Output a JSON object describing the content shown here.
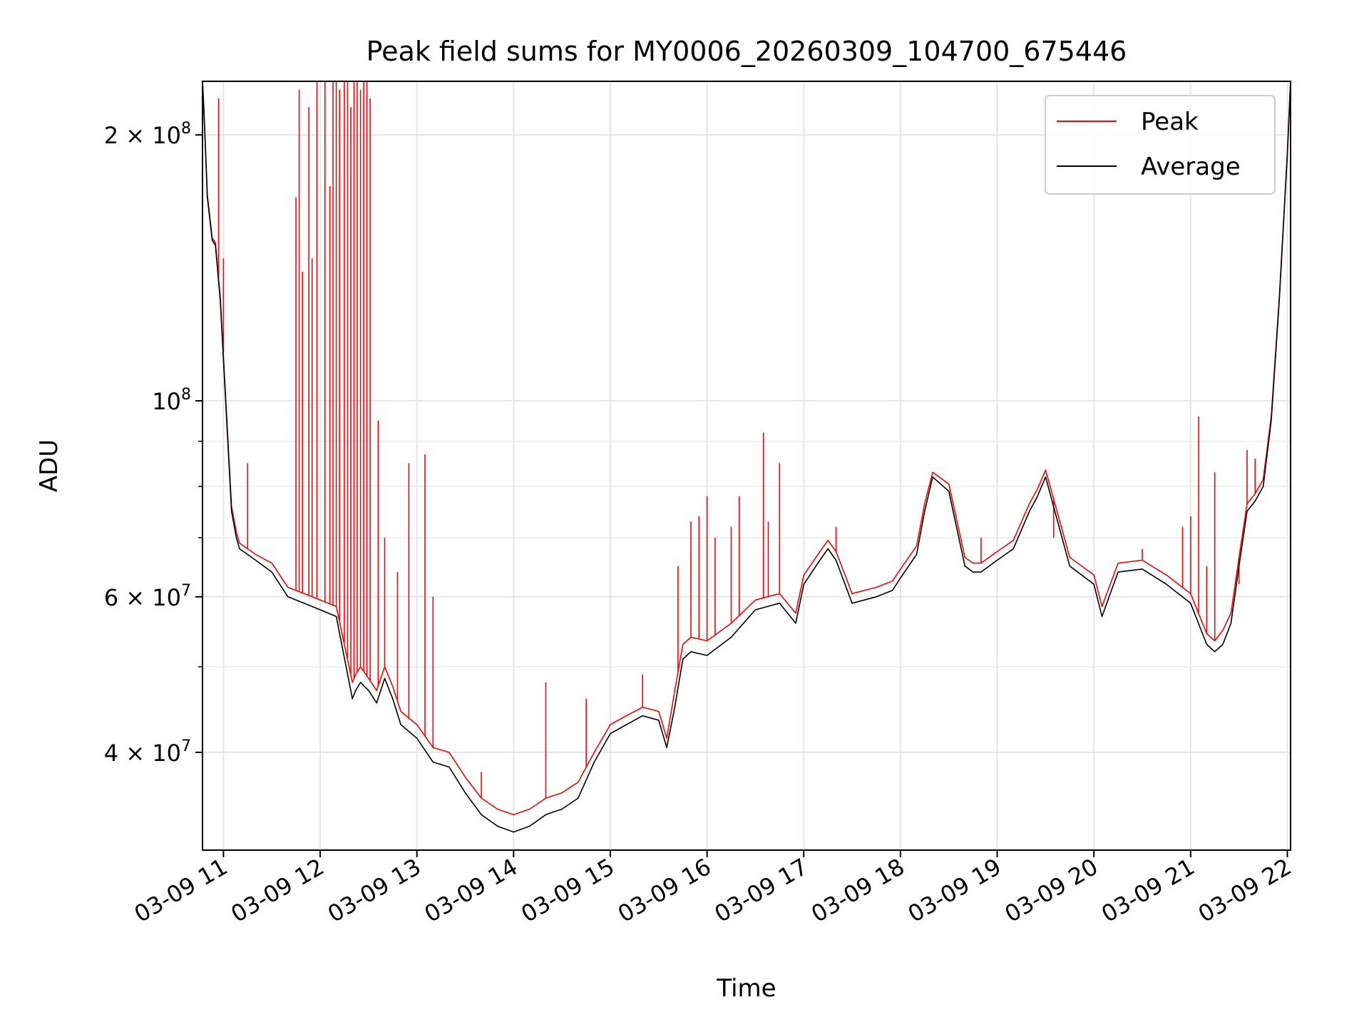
{
  "chart_data": {
    "type": "line",
    "title": "Peak field sums for MY0006_20260309_104700_675446",
    "xlabel": "Time",
    "ylabel": "ADU",
    "y_scale": "log",
    "ylim": [
      31000000,
      230000000
    ],
    "xlim": [
      "03-09 10:47",
      "03-09 22:02"
    ],
    "grid": true,
    "legend_position": "top-right",
    "x_tick_labels": [
      "03-09 11",
      "03-09 12",
      "03-09 13",
      "03-09 14",
      "03-09 15",
      "03-09 16",
      "03-09 17",
      "03-09 18",
      "03-09 19",
      "03-09 20",
      "03-09 21",
      "03-09 22"
    ],
    "y_tick_labels": [
      {
        "value": 40000000,
        "base": "4 × 10",
        "exp": "7"
      },
      {
        "value": 60000000,
        "base": "6 × 10",
        "exp": "7"
      },
      {
        "value": 100000000,
        "base": "10",
        "exp": "8"
      },
      {
        "value": 200000000,
        "base": "2 × 10",
        "exp": "8"
      }
    ],
    "y_minor_ticks": [
      50000000,
      70000000,
      80000000,
      90000000
    ],
    "series": [
      {
        "name": "Average",
        "color": "#000000",
        "x": [
          "03-09 10:47",
          "03-09 10:48",
          "03-09 10:50",
          "03-09 10:53",
          "03-09 10:55",
          "03-09 10:58",
          "03-09 11:02",
          "03-09 11:05",
          "03-09 11:08",
          "03-09 11:10",
          "03-09 11:15",
          "03-09 11:20",
          "03-09 11:30",
          "03-09 11:40",
          "03-09 11:50",
          "03-09 12:00",
          "03-09 12:10",
          "03-09 12:20",
          "03-09 12:22",
          "03-09 12:25",
          "03-09 12:30",
          "03-09 12:35",
          "03-09 12:40",
          "03-09 12:45",
          "03-09 12:50",
          "03-09 13:00",
          "03-09 13:10",
          "03-09 13:20",
          "03-09 13:30",
          "03-09 13:40",
          "03-09 13:50",
          "03-09 14:00",
          "03-09 14:10",
          "03-09 14:20",
          "03-09 14:30",
          "03-09 14:40",
          "03-09 14:50",
          "03-09 15:00",
          "03-09 15:10",
          "03-09 15:20",
          "03-09 15:30",
          "03-09 15:35",
          "03-09 15:40",
          "03-09 15:45",
          "03-09 15:50",
          "03-09 16:00",
          "03-09 16:15",
          "03-09 16:30",
          "03-09 16:45",
          "03-09 16:55",
          "03-09 17:00",
          "03-09 17:10",
          "03-09 17:15",
          "03-09 17:20",
          "03-09 17:30",
          "03-09 17:45",
          "03-09 17:55",
          "03-09 18:00",
          "03-09 18:10",
          "03-09 18:15",
          "03-09 18:20",
          "03-09 18:30",
          "03-09 18:40",
          "03-09 18:45",
          "03-09 18:50",
          "03-09 19:00",
          "03-09 19:10",
          "03-09 19:20",
          "03-09 19:25",
          "03-09 19:30",
          "03-09 19:45",
          "03-09 20:00",
          "03-09 20:05",
          "03-09 20:15",
          "03-09 20:30",
          "03-09 20:45",
          "03-09 21:00",
          "03-09 21:10",
          "03-09 21:15",
          "03-09 21:20",
          "03-09 21:25",
          "03-09 21:30",
          "03-09 21:35",
          "03-09 21:40",
          "03-09 21:45",
          "03-09 21:50",
          "03-09 21:55",
          "03-09 22:00",
          "03-09 22:02"
        ],
        "values": [
          230000000,
          210000000,
          170000000,
          152000000,
          150000000,
          130000000,
          95000000,
          75000000,
          70000000,
          68000000,
          67000000,
          66000000,
          64000000,
          60000000,
          59000000,
          58000000,
          57000000,
          46000000,
          47000000,
          48000000,
          47000000,
          45500000,
          48500000,
          46000000,
          43000000,
          41500000,
          39000000,
          38500000,
          36000000,
          34000000,
          33000000,
          32500000,
          33000000,
          34000000,
          34500000,
          35500000,
          39000000,
          42000000,
          43000000,
          44000000,
          43500000,
          40500000,
          45000000,
          51000000,
          52000000,
          51500000,
          54000000,
          58000000,
          59000000,
          56000000,
          62000000,
          66000000,
          68000000,
          66000000,
          59000000,
          60000000,
          61000000,
          63000000,
          67000000,
          75000000,
          82000000,
          79000000,
          65000000,
          64000000,
          64000000,
          66000000,
          68000000,
          75000000,
          78000000,
          82000000,
          65000000,
          62000000,
          57000000,
          64000000,
          64500000,
          62000000,
          59000000,
          53000000,
          52000000,
          53000000,
          56000000,
          65000000,
          75000000,
          77000000,
          80000000,
          95000000,
          130000000,
          190000000,
          230000000
        ]
      },
      {
        "name": "Peak",
        "color": "#ff0000",
        "x": [
          "03-09 10:47",
          "03-09 10:48",
          "03-09 10:50",
          "03-09 10:53",
          "03-09 10:55",
          "03-09 10:58",
          "03-09 11:02",
          "03-09 11:05",
          "03-09 11:08",
          "03-09 11:10",
          "03-09 11:15",
          "03-09 11:20",
          "03-09 11:30",
          "03-09 11:40",
          "03-09 11:50",
          "03-09 12:00",
          "03-09 12:10",
          "03-09 12:20",
          "03-09 12:22",
          "03-09 12:25",
          "03-09 12:30",
          "03-09 12:35",
          "03-09 12:40",
          "03-09 12:45",
          "03-09 12:50",
          "03-09 13:00",
          "03-09 13:10",
          "03-09 13:20",
          "03-09 13:30",
          "03-09 13:40",
          "03-09 13:50",
          "03-09 14:00",
          "03-09 14:10",
          "03-09 14:20",
          "03-09 14:30",
          "03-09 14:40",
          "03-09 14:50",
          "03-09 15:00",
          "03-09 15:10",
          "03-09 15:20",
          "03-09 15:30",
          "03-09 15:35",
          "03-09 15:40",
          "03-09 15:45",
          "03-09 15:50",
          "03-09 16:00",
          "03-09 16:15",
          "03-09 16:30",
          "03-09 16:45",
          "03-09 16:55",
          "03-09 17:00",
          "03-09 17:10",
          "03-09 17:15",
          "03-09 17:20",
          "03-09 17:30",
          "03-09 17:45",
          "03-09 17:55",
          "03-09 18:00",
          "03-09 18:10",
          "03-09 18:15",
          "03-09 18:20",
          "03-09 18:30",
          "03-09 18:40",
          "03-09 18:45",
          "03-09 18:50",
          "03-09 19:00",
          "03-09 19:10",
          "03-09 19:20",
          "03-09 19:25",
          "03-09 19:30",
          "03-09 19:45",
          "03-09 20:00",
          "03-09 20:05",
          "03-09 20:15",
          "03-09 20:30",
          "03-09 20:45",
          "03-09 21:00",
          "03-09 21:10",
          "03-09 21:15",
          "03-09 21:20",
          "03-09 21:25",
          "03-09 21:30",
          "03-09 21:35",
          "03-09 21:40",
          "03-09 21:45",
          "03-09 21:50",
          "03-09 21:55",
          "03-09 22:00",
          "03-09 22:02"
        ],
        "values": [
          230000000,
          211000000,
          171000000,
          153000000,
          151000000,
          131000000,
          96000000,
          76000000,
          71000000,
          69000000,
          68000000,
          67000000,
          65500000,
          61500000,
          60500000,
          59500000,
          58500000,
          48000000,
          49000000,
          50000000,
          48500000,
          47000000,
          50000000,
          47500000,
          44500000,
          43000000,
          40500000,
          40000000,
          37500000,
          35500000,
          34500000,
          34000000,
          34500000,
          35500000,
          36000000,
          37000000,
          40000000,
          43000000,
          44000000,
          45000000,
          44500000,
          41500000,
          47000000,
          53000000,
          54000000,
          53500000,
          56000000,
          59500000,
          60500000,
          57500000,
          63500000,
          67500000,
          69500000,
          67500000,
          60500000,
          61500000,
          62500000,
          64500000,
          68500000,
          76500000,
          83000000,
          80500000,
          66500000,
          65500000,
          65500000,
          67500000,
          69500000,
          76500000,
          79500000,
          83500000,
          66500000,
          63500000,
          58500000,
          65500000,
          66000000,
          63500000,
          60500000,
          54500000,
          53500000,
          55000000,
          57500000,
          66500000,
          76500000,
          78500000,
          81500000,
          96000000,
          131000000,
          191000000,
          230000000
        ]
      }
    ],
    "spikes": {
      "series": "Peak",
      "x": [
        "03-09 10:57",
        "03-09 11:00",
        "03-09 11:15",
        "03-09 11:45",
        "03-09 11:47",
        "03-09 11:49",
        "03-09 11:53",
        "03-09 11:55",
        "03-09 11:58",
        "03-09 12:03",
        "03-09 12:06",
        "03-09 12:08",
        "03-09 12:10",
        "03-09 12:12",
        "03-09 12:15",
        "03-09 12:17",
        "03-09 12:19",
        "03-09 12:21",
        "03-09 12:23",
        "03-09 12:25",
        "03-09 12:27",
        "03-09 12:29",
        "03-09 12:31",
        "03-09 12:36",
        "03-09 12:40",
        "03-09 12:48",
        "03-09 12:55",
        "03-09 13:05",
        "03-09 13:10",
        "03-09 13:40",
        "03-09 14:20",
        "03-09 14:45",
        "03-09 15:20",
        "03-09 15:42",
        "03-09 15:50",
        "03-09 15:55",
        "03-09 16:00",
        "03-09 16:05",
        "03-09 16:15",
        "03-09 16:20",
        "03-09 16:35",
        "03-09 16:38",
        "03-09 16:45",
        "03-09 17:20",
        "03-09 18:50",
        "03-09 19:35",
        "03-09 19:40",
        "03-09 20:30",
        "03-09 20:55",
        "03-09 21:00",
        "03-09 21:05",
        "03-09 21:10",
        "03-09 21:15",
        "03-09 21:30",
        "03-09 21:35",
        "03-09 21:40"
      ],
      "values": [
        220000000,
        145000000,
        85000000,
        170000000,
        225000000,
        140000000,
        215000000,
        145000000,
        230000000,
        230000000,
        175000000,
        230000000,
        230000000,
        225000000,
        230000000,
        230000000,
        215000000,
        230000000,
        230000000,
        225000000,
        230000000,
        230000000,
        220000000,
        95000000,
        70000000,
        64000000,
        85000000,
        87000000,
        60000000,
        38000000,
        48000000,
        46000000,
        49000000,
        65000000,
        73000000,
        74000000,
        78000000,
        70000000,
        72000000,
        78000000,
        92000000,
        73000000,
        85000000,
        72000000,
        70000000,
        70000000,
        72000000,
        68000000,
        72000000,
        74000000,
        96000000,
        65000000,
        83000000,
        62000000,
        88000000,
        86000000
      ]
    }
  }
}
